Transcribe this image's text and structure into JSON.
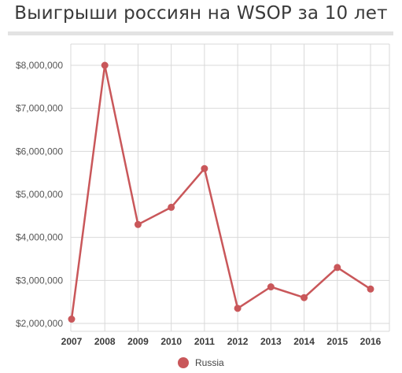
{
  "title": "Выигрыши россиян на WSOP за 10 лет",
  "colors": {
    "series": "#c9575a",
    "grid": "#d9d9d9",
    "axis": "#bbbbbb"
  },
  "chart_data": {
    "type": "line",
    "title": "Выигрыши россиян на WSOP за 10 лет",
    "xlabel": "",
    "ylabel": "",
    "x": [
      "2007",
      "2008",
      "2009",
      "2010",
      "2011",
      "2012",
      "2013",
      "2014",
      "2015",
      "2016"
    ],
    "series": [
      {
        "name": "Russia",
        "values": [
          2100000,
          8000000,
          4300000,
          4700000,
          5600000,
          2350000,
          2850000,
          2600000,
          3300000,
          2800000
        ]
      }
    ],
    "ylim": [
      1900000,
      8500000
    ],
    "yticks": [
      2000000,
      3000000,
      4000000,
      5000000,
      6000000,
      7000000,
      8000000
    ],
    "ytick_labels": [
      "$2,000,000",
      "$3,000,000",
      "$4,000,000",
      "$5,000,000",
      "$6,000,000",
      "$7,000,000",
      "$8,000,000"
    ],
    "grid": true,
    "legend": {
      "position": "bottom-center",
      "entries": [
        "Russia"
      ]
    }
  }
}
